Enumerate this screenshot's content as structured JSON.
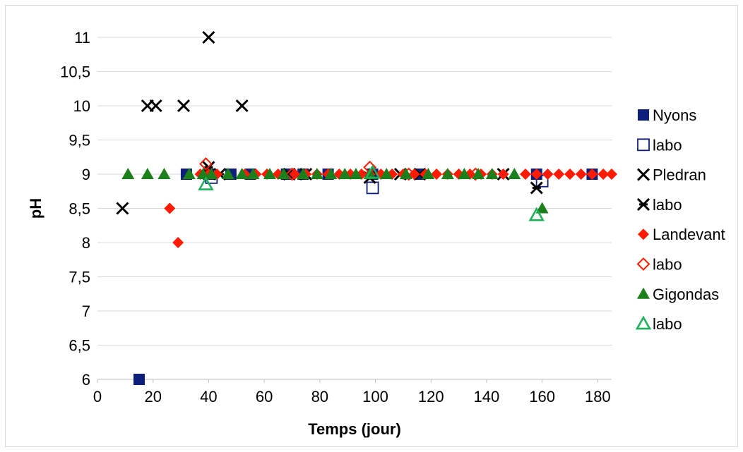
{
  "chart_data": {
    "type": "scatter",
    "xlabel": "Temps (jour)",
    "ylabel": "pH",
    "xlim": [
      0,
      185
    ],
    "ylim": [
      6,
      11
    ],
    "xticks": [
      "0",
      "20",
      "40",
      "60",
      "80",
      "100",
      "120",
      "140",
      "160",
      "180"
    ],
    "yticks": [
      "6",
      "6,5",
      "7",
      "7,5",
      "8",
      "8,5",
      "9",
      "9,5",
      "10",
      "10,5",
      "11"
    ],
    "grid": "horizontal",
    "legend_position": "right",
    "series": [
      {
        "name": "Nyons",
        "marker": "square-filled",
        "color": "#0d1f7a",
        "points": [
          [
            15,
            6
          ],
          [
            32,
            9
          ],
          [
            40,
            9
          ],
          [
            48,
            9
          ],
          [
            55,
            9
          ],
          [
            68,
            9
          ],
          [
            74,
            9
          ],
          [
            83,
            9
          ],
          [
            99,
            9
          ],
          [
            116,
            9
          ],
          [
            158,
            9
          ],
          [
            178,
            9
          ]
        ]
      },
      {
        "name": "labo",
        "marker": "square-open",
        "color": "#0d1f7a",
        "points": [
          [
            41,
            8.95
          ],
          [
            99,
            8.8
          ],
          [
            160,
            8.9
          ]
        ]
      },
      {
        "name": "Pledran",
        "marker": "x",
        "color": "#000000",
        "points": [
          [
            9,
            8.5
          ],
          [
            18,
            10
          ],
          [
            21,
            10
          ],
          [
            31,
            10
          ],
          [
            40,
            11
          ],
          [
            52,
            10
          ],
          [
            69,
            9
          ],
          [
            75,
            9
          ],
          [
            109,
            9
          ],
          [
            116,
            9
          ],
          [
            146,
            9
          ]
        ]
      },
      {
        "name": "labo",
        "marker": "star-x",
        "color": "#000000",
        "points": [
          [
            40,
            9.1
          ],
          [
            44,
            9
          ],
          [
            69,
            9
          ],
          [
            98,
            8.95
          ],
          [
            116,
            9
          ],
          [
            158,
            8.8
          ]
        ]
      },
      {
        "name": "Landevant",
        "marker": "diamond-filled",
        "color": "#ff1a00",
        "points": [
          [
            26,
            8.5
          ],
          [
            29,
            8
          ],
          [
            37,
            9
          ],
          [
            40,
            9
          ],
          [
            43,
            9
          ],
          [
            53,
            9
          ],
          [
            57,
            9
          ],
          [
            61,
            9
          ],
          [
            65,
            9
          ],
          [
            71,
            9
          ],
          [
            75,
            9
          ],
          [
            79,
            9
          ],
          [
            83,
            9
          ],
          [
            87,
            9
          ],
          [
            91,
            9
          ],
          [
            95,
            9
          ],
          [
            98,
            9
          ],
          [
            102,
            9
          ],
          [
            106,
            9
          ],
          [
            110,
            9
          ],
          [
            114,
            9
          ],
          [
            118,
            9
          ],
          [
            122,
            9
          ],
          [
            126,
            9
          ],
          [
            130,
            9
          ],
          [
            134,
            9
          ],
          [
            138,
            9
          ],
          [
            142,
            9
          ],
          [
            146,
            9
          ],
          [
            154,
            9
          ],
          [
            158,
            9
          ],
          [
            162,
            9
          ],
          [
            166,
            9
          ],
          [
            170,
            9
          ],
          [
            174,
            9
          ],
          [
            178,
            9
          ],
          [
            182,
            9
          ],
          [
            185,
            9
          ]
        ]
      },
      {
        "name": "labo",
        "marker": "diamond-open",
        "color": "#ff1a00",
        "points": [
          [
            39,
            9.15
          ],
          [
            70,
            9
          ],
          [
            98,
            9.1
          ],
          [
            112,
            9
          ],
          [
            136,
            9
          ]
        ]
      },
      {
        "name": "Gigondas",
        "marker": "triangle-filled",
        "color": "#1b7f1b",
        "points": [
          [
            11,
            9
          ],
          [
            18,
            9
          ],
          [
            24,
            9
          ],
          [
            33,
            9
          ],
          [
            38,
            9
          ],
          [
            41,
            9
          ],
          [
            47,
            9
          ],
          [
            52,
            9
          ],
          [
            56,
            9
          ],
          [
            62,
            9
          ],
          [
            67,
            9
          ],
          [
            74,
            9
          ],
          [
            79,
            9
          ],
          [
            84,
            9
          ],
          [
            89,
            9
          ],
          [
            93,
            9
          ],
          [
            98,
            9
          ],
          [
            104,
            9
          ],
          [
            111,
            9
          ],
          [
            119,
            9
          ],
          [
            126,
            9
          ],
          [
            132,
            9
          ],
          [
            137,
            9
          ],
          [
            142,
            9
          ],
          [
            150,
            9
          ],
          [
            160,
            8.5
          ]
        ]
      },
      {
        "name": "labo",
        "marker": "triangle-open",
        "color": "#1fb05a",
        "points": [
          [
            39,
            8.85
          ],
          [
            99,
            9.02
          ],
          [
            158,
            8.4
          ]
        ]
      }
    ]
  }
}
